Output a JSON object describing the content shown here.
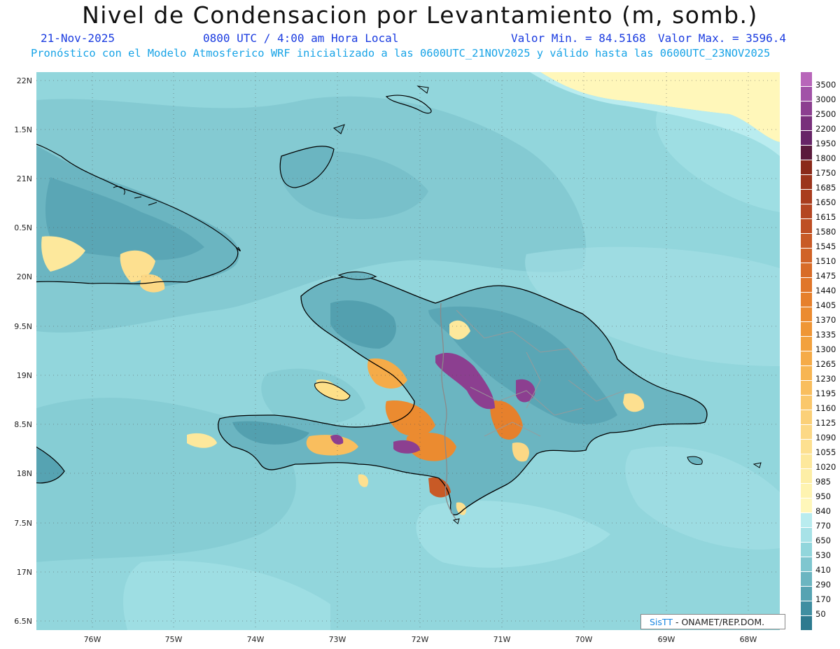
{
  "header": {
    "title": "Nivel de Condensacion por Levantamiento (m, somb.)",
    "date": "21-Nov-2025",
    "time": "0800 UTC / 4:00 am Hora Local",
    "min_label": "Valor Min. = 84.5168",
    "max_label": "Valor Max. = 3596.4",
    "model_line": "Pronóstico con el Modelo Atmosferico WRF inicializado a las 0600UTC_21NOV2025 y válido hasta las  0600UTC_23NOV2025"
  },
  "map": {
    "lat_ticks": [
      "22N",
      "1.5N",
      "21N",
      "0.5N",
      "20N",
      "9.5N",
      "19N",
      "8.5N",
      "18N",
      "7.5N",
      "17N",
      "6.5N"
    ],
    "lon_ticks": [
      "76W",
      "75W",
      "74W",
      "73W",
      "72W",
      "71W",
      "70W",
      "69W",
      "68W"
    ],
    "background_color": "#92d6dc"
  },
  "legend": {
    "levels": [
      {
        "label": "3500",
        "color": "#b866ba"
      },
      {
        "label": "3000",
        "color": "#a152a7"
      },
      {
        "label": "2500",
        "color": "#8c3f90"
      },
      {
        "label": "2200",
        "color": "#79307b"
      },
      {
        "label": "1950",
        "color": "#672467"
      },
      {
        "label": "1800",
        "color": "#5a1a3c"
      },
      {
        "label": "1750",
        "color": "#8a2a1a"
      },
      {
        "label": "1685",
        "color": "#9b341b"
      },
      {
        "label": "1650",
        "color": "#a93d1e"
      },
      {
        "label": "1615",
        "color": "#b44622"
      },
      {
        "label": "1580",
        "color": "#be4f24"
      },
      {
        "label": "1545",
        "color": "#c85a26"
      },
      {
        "label": "1510",
        "color": "#d06327"
      },
      {
        "label": "1475",
        "color": "#d86c28"
      },
      {
        "label": "1440",
        "color": "#e0762a"
      },
      {
        "label": "1405",
        "color": "#e6802c"
      },
      {
        "label": "1370",
        "color": "#eb8b30"
      },
      {
        "label": "1335",
        "color": "#ef9636"
      },
      {
        "label": "1300",
        "color": "#f2a13e"
      },
      {
        "label": "1265",
        "color": "#f5ab48"
      },
      {
        "label": "1230",
        "color": "#f7b552"
      },
      {
        "label": "1195",
        "color": "#f9be5e"
      },
      {
        "label": "1160",
        "color": "#fac76b"
      },
      {
        "label": "1125",
        "color": "#fbd078"
      },
      {
        "label": "1090",
        "color": "#fcd885"
      },
      {
        "label": "1055",
        "color": "#fde090"
      },
      {
        "label": "1020",
        "color": "#fde89c"
      },
      {
        "label": "985",
        "color": "#fdeea6"
      },
      {
        "label": "950",
        "color": "#fef3b0"
      },
      {
        "label": "840",
        "color": "#fff7ba"
      },
      {
        "label": "770",
        "color": "#b9ecef"
      },
      {
        "label": "650",
        "color": "#a7e2e7"
      },
      {
        "label": "530",
        "color": "#92d6dc"
      },
      {
        "label": "410",
        "color": "#7fc6cf"
      },
      {
        "label": "290",
        "color": "#6bb5c1"
      },
      {
        "label": "170",
        "color": "#56a3b2"
      },
      {
        "label": "50",
        "color": "#3f8ea1"
      },
      {
        "label": "",
        "color": "#2d7a8f"
      }
    ]
  },
  "credit": {
    "brand": "SisTT",
    "text": "- ONAMET/REP.DOM."
  }
}
